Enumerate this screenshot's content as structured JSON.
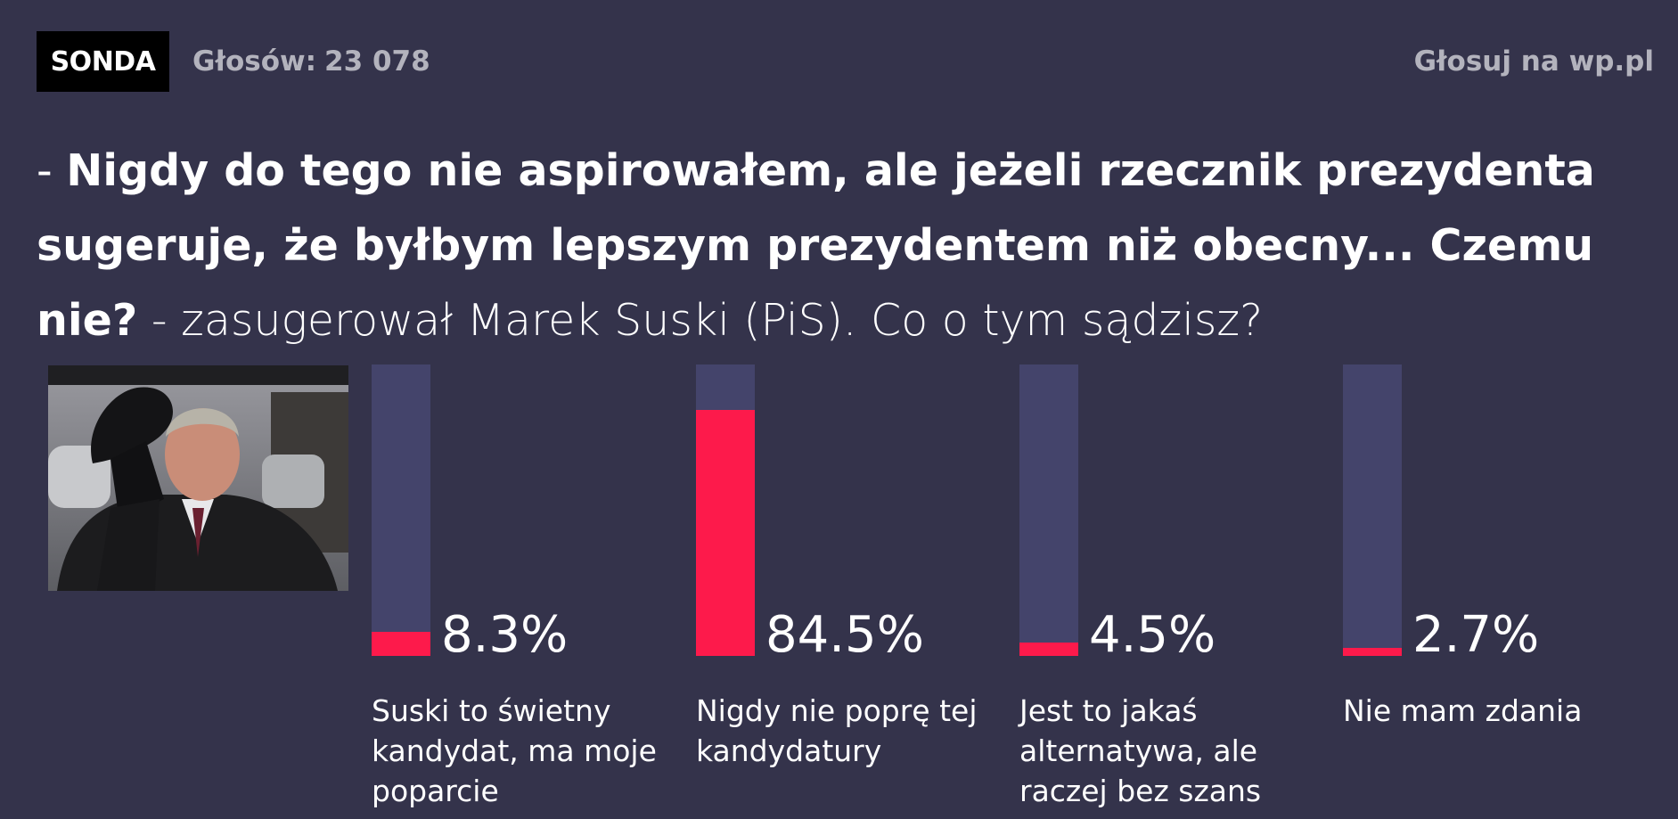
{
  "header": {
    "badge": "SONDA",
    "votes_label": "Głosów:",
    "votes_count": "23 078",
    "vote_link": "Głosuj na wp.pl"
  },
  "question": {
    "dash": "- ",
    "bold": "Nigdy do tego nie aspirowałem, ale jeżeli rzecznik prezydenta sugeruje, że byłbym lepszym prezydentem niż obecny... Czemu nie?",
    "line1_bold": "Nigdy do tego nie aspirowałem, ale jeżeli rzecznik prezydenta",
    "line2_bold": "sugeruje, że byłbym lepszym prezydentem niż obecny... Czemu",
    "line3_bold": "nie?",
    "line3_rest": " - zasugerował Marek Suski (PiS). Co o tym sądzisz?"
  },
  "colors": {
    "background": "#34334b",
    "track": "#44446b",
    "accent": "#fd1a4b"
  },
  "chart_data": {
    "type": "bar",
    "categories": [
      "Suski to świetny kandydat, ma moje poparcie",
      "Nigdy nie poprę tej kandydatury",
      "Jest to jakaś alternatywa, ale raczej bez szans",
      "Nie mam zdania"
    ],
    "values": [
      8.3,
      84.5,
      4.5,
      2.7
    ],
    "value_labels": [
      "8.3%",
      "84.5%",
      "4.5%",
      "2.7%"
    ],
    "ylim": [
      0,
      100
    ],
    "grid": false,
    "legend": "none"
  }
}
